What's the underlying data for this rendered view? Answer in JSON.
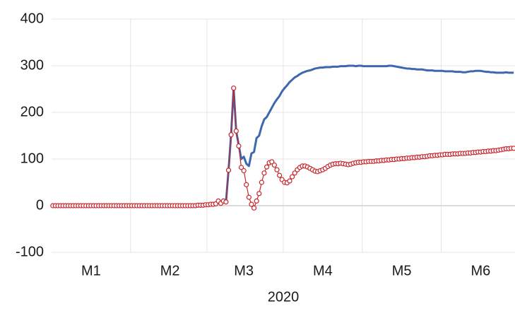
{
  "chart_data": {
    "type": "line",
    "x_label": "2020",
    "categories": [
      null,
      null,
      null,
      null,
      null,
      null,
      null,
      null,
      null,
      null,
      null,
      null,
      null,
      null,
      null,
      "M1",
      null,
      null,
      null,
      null,
      null,
      null,
      null,
      null,
      null,
      null,
      null,
      null,
      null,
      null,
      null,
      null,
      null,
      null,
      null,
      null,
      null,
      null,
      null,
      null,
      null,
      null,
      null,
      null,
      null,
      null,
      "M2",
      null,
      null,
      null,
      null,
      null,
      null,
      null,
      null,
      null,
      null,
      null,
      null,
      null,
      null,
      null,
      null,
      null,
      null,
      null,
      null,
      null,
      null,
      null,
      null,
      null,
      null,
      null,
      null,
      "M3",
      null,
      null,
      null,
      null,
      null,
      null,
      null,
      null,
      null,
      null,
      null,
      null,
      null,
      null,
      null,
      null,
      null,
      null,
      null,
      null,
      null,
      null,
      null,
      null,
      null,
      null,
      null,
      null,
      null,
      null,
      "M4",
      null,
      null,
      null,
      null,
      null,
      null,
      null,
      null,
      null,
      null,
      null,
      null,
      null,
      null,
      null,
      null,
      null,
      null,
      null,
      null,
      null,
      null,
      null,
      null,
      null,
      null,
      null,
      null,
      null,
      null,
      "M5",
      null,
      null,
      null,
      null,
      null,
      null,
      null,
      null,
      null,
      null,
      null,
      null,
      null,
      null,
      null,
      null,
      null,
      null,
      null,
      null,
      null,
      null,
      null,
      null,
      null,
      null,
      null,
      null,
      null,
      null,
      "M6",
      null,
      null,
      null,
      null,
      null,
      null,
      null,
      null,
      null,
      null,
      null,
      null,
      null
    ],
    "series": [
      {
        "color": "#3d68b0",
        "marker": "none",
        "values": [
          0,
          0,
          0,
          0,
          0,
          0,
          0,
          0,
          0,
          0,
          0,
          0,
          0,
          0,
          0,
          0,
          0,
          0,
          0,
          0,
          0,
          0,
          0,
          0,
          0,
          0,
          0,
          0,
          0,
          0,
          0,
          0,
          0,
          0,
          0,
          0,
          0,
          0,
          0,
          0,
          0,
          0,
          0,
          0,
          0,
          0,
          0,
          0,
          0,
          0,
          0,
          0,
          0,
          0,
          0,
          0,
          0,
          1,
          1,
          1,
          2,
          2,
          3,
          3,
          4,
          10,
          5,
          10,
          8,
          76,
          152,
          252,
          160,
          130,
          100,
          105,
          90,
          85,
          112,
          115,
          145,
          150,
          170,
          185,
          190,
          200,
          210,
          220,
          228,
          235,
          245,
          252,
          258,
          265,
          270,
          275,
          278,
          282,
          285,
          287,
          289,
          290,
          292,
          294,
          295,
          296,
          296,
          297,
          297,
          297,
          298,
          298,
          298,
          299,
          299,
          299,
          300,
          300,
          300,
          299,
          300,
          300,
          299,
          299,
          299,
          299,
          299,
          299,
          299,
          299,
          299,
          299,
          300,
          300,
          299,
          298,
          297,
          296,
          295,
          294,
          294,
          293,
          293,
          292,
          292,
          292,
          291,
          290,
          290,
          290,
          289,
          289,
          289,
          289,
          288,
          288,
          288,
          288,
          287,
          287,
          287,
          286,
          286,
          287,
          288,
          288,
          289,
          289,
          289,
          288,
          287,
          287,
          286,
          286,
          285,
          285,
          285,
          285,
          286,
          285,
          285,
          285
        ]
      },
      {
        "color": "#c8262c",
        "marker": "circle",
        "values": [
          0,
          0,
          0,
          0,
          0,
          0,
          0,
          0,
          0,
          0,
          0,
          0,
          0,
          0,
          0,
          0,
          0,
          0,
          0,
          0,
          0,
          0,
          0,
          0,
          0,
          0,
          0,
          0,
          0,
          0,
          0,
          0,
          0,
          0,
          0,
          0,
          0,
          0,
          0,
          0,
          0,
          0,
          0,
          0,
          0,
          0,
          0,
          0,
          0,
          0,
          0,
          0,
          0,
          0,
          0,
          0,
          0,
          1,
          1,
          1,
          2,
          2,
          3,
          3,
          4,
          10,
          5,
          10,
          8,
          76,
          152,
          252,
          160,
          128,
          82,
          75,
          45,
          18,
          3,
          -5,
          10,
          26,
          50,
          70,
          83,
          92,
          94,
          87,
          77,
          65,
          56,
          50,
          49,
          53,
          62,
          70,
          77,
          82,
          85,
          85,
          83,
          80,
          77,
          74,
          73,
          75,
          77,
          80,
          84,
          87,
          89,
          90,
          90,
          91,
          90,
          89,
          88,
          89,
          91,
          92,
          93,
          93,
          94,
          94,
          95,
          95,
          95,
          96,
          96,
          97,
          97,
          98,
          98,
          99,
          99,
          100,
          100,
          101,
          101,
          102,
          102,
          103,
          103,
          104,
          104,
          105,
          105,
          106,
          107,
          107,
          108,
          108,
          109,
          109,
          110,
          110,
          110,
          111,
          111,
          111,
          112,
          112,
          112,
          113,
          113,
          114,
          114,
          115,
          115,
          116,
          116,
          117,
          117,
          118,
          118,
          119,
          120,
          121,
          122,
          122,
          123,
          123
        ]
      }
    ],
    "ylim": [
      -100,
      400
    ],
    "yticks": [
      -100,
      0,
      100,
      200,
      300,
      400
    ],
    "grid": true
  }
}
